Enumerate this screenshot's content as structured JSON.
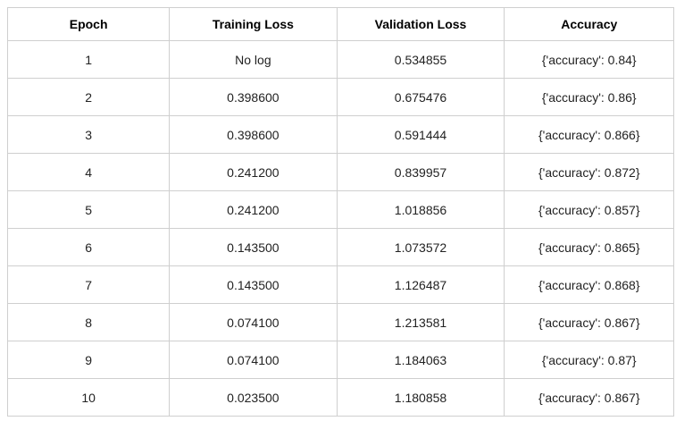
{
  "chart_data": {
    "type": "table",
    "title": "",
    "columns": [
      "Epoch",
      "Training Loss",
      "Validation Loss",
      "Accuracy"
    ],
    "rows": [
      [
        "1",
        "No log",
        "0.534855",
        "{'accuracy': 0.84}"
      ],
      [
        "2",
        "0.398600",
        "0.675476",
        "{'accuracy': 0.86}"
      ],
      [
        "3",
        "0.398600",
        "0.591444",
        "{'accuracy': 0.866}"
      ],
      [
        "4",
        "0.241200",
        "0.839957",
        "{'accuracy': 0.872}"
      ],
      [
        "5",
        "0.241200",
        "1.018856",
        "{'accuracy': 0.857}"
      ],
      [
        "6",
        "0.143500",
        "1.073572",
        "{'accuracy': 0.865}"
      ],
      [
        "7",
        "0.143500",
        "1.126487",
        "{'accuracy': 0.868}"
      ],
      [
        "8",
        "0.074100",
        "1.213581",
        "{'accuracy': 0.867}"
      ],
      [
        "9",
        "0.074100",
        "1.184063",
        "{'accuracy': 0.87}"
      ],
      [
        "10",
        "0.023500",
        "1.180858",
        "{'accuracy': 0.867}"
      ]
    ],
    "layout": {
      "border_color": "#cfcfcf",
      "background_color": "#ffffff",
      "header_bold": true,
      "text_align": "center",
      "grid": true
    }
  }
}
